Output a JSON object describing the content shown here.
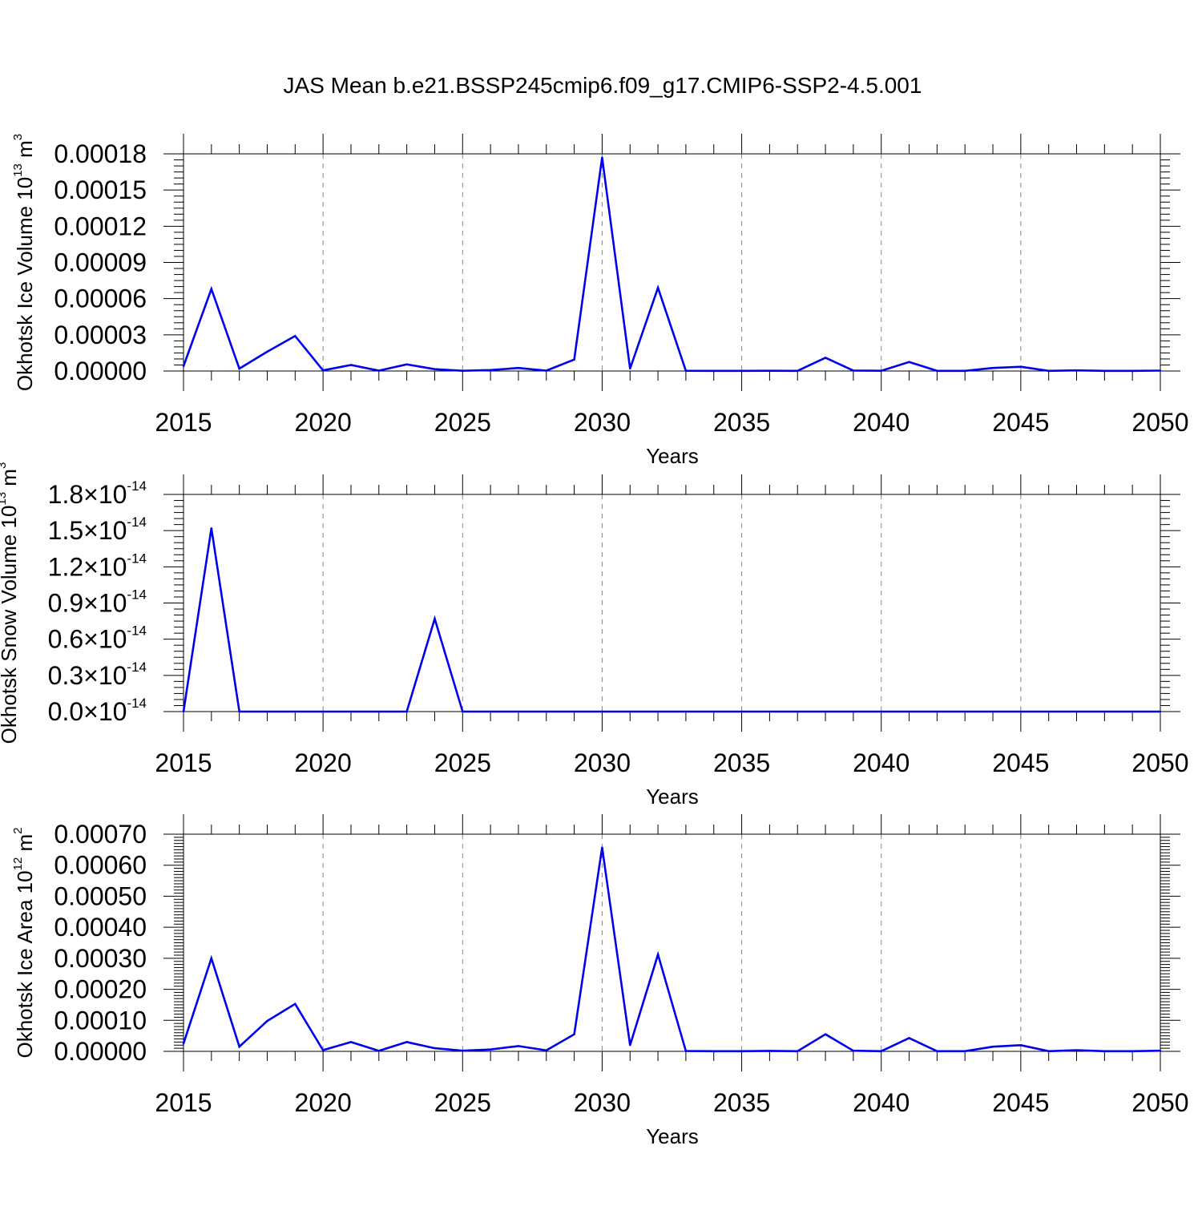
{
  "title": "JAS Mean b.e21.BSSP245cmip6.f09_g17.CMIP6-SSP2-4.5.001",
  "colors": {
    "line": "#0000ee",
    "axis": "#000000",
    "grid": "#888888"
  },
  "chart_data": [
    {
      "type": "line",
      "xlabel": "Years",
      "ylabel": {
        "main": "Okhotsk Ice Volume 10",
        "exp": "13",
        "unit": " m",
        "unit_exp": "3"
      },
      "xlim": [
        2015,
        2050
      ],
      "ylim": [
        0,
        0.00018
      ],
      "xticks": [
        "2015",
        "2020",
        "2025",
        "2030",
        "2035",
        "2040",
        "2045",
        "2050"
      ],
      "yticks": [
        "0.00000",
        "0.00003",
        "0.00006",
        "0.00009",
        "0.00012",
        "0.00015",
        "0.00018"
      ],
      "x": [
        2015,
        2016,
        2017,
        2018,
        2019,
        2020,
        2021,
        2022,
        2023,
        2024,
        2025,
        2026,
        2027,
        2028,
        2029,
        2030,
        2031,
        2032,
        2033,
        2034,
        2035,
        2036,
        2037,
        2038,
        2039,
        2040,
        2041,
        2042,
        2043,
        2044,
        2045,
        2046,
        2047,
        2048,
        2049,
        2050
      ],
      "series": [
        {
          "values": [
            4e-06,
            6.8e-05,
            2e-06,
            1.6e-05,
            2.9e-05,
            5e-07,
            5e-06,
            3e-07,
            5.5e-06,
            1.5e-06,
            2e-07,
            8e-07,
            2.5e-06,
            3e-07,
            9.5e-06,
            0.000177,
            2e-06,
            6.9e-05,
            2e-07,
            1e-07,
            1e-07,
            2e-07,
            1e-07,
            1.1e-05,
            4e-07,
            2e-07,
            7.5e-06,
            1e-07,
            1e-07,
            2.5e-06,
            3.5e-06,
            1e-07,
            5e-07,
            1e-07,
            1e-07,
            3e-07
          ]
        }
      ]
    },
    {
      "type": "line",
      "xlabel": "Years",
      "ylabel": {
        "main": "Okhotsk Snow Volume 10",
        "exp": "13",
        "unit": " m",
        "unit_exp": "3"
      },
      "xlim": [
        2015,
        2050
      ],
      "ylim": [
        0,
        1.8e-14
      ],
      "xticks": [
        "2015",
        "2020",
        "2025",
        "2030",
        "2035",
        "2040",
        "2045",
        "2050"
      ],
      "yticks": [
        {
          "mant": "0.0",
          "exp": "-14"
        },
        {
          "mant": "0.3",
          "exp": "-14"
        },
        {
          "mant": "0.6",
          "exp": "-14"
        },
        {
          "mant": "0.9",
          "exp": "-14"
        },
        {
          "mant": "1.2",
          "exp": "-14"
        },
        {
          "mant": "1.5",
          "exp": "-14"
        },
        {
          "mant": "1.8",
          "exp": "-14"
        }
      ],
      "ytick_times": "×10",
      "x": [
        2015,
        2016,
        2017,
        2018,
        2019,
        2020,
        2021,
        2022,
        2023,
        2024,
        2025,
        2026,
        2027,
        2028,
        2029,
        2030,
        2031,
        2032,
        2033,
        2034,
        2035,
        2036,
        2037,
        2038,
        2039,
        2040,
        2041,
        2042,
        2043,
        2044,
        2045,
        2046,
        2047,
        2048,
        2049,
        2050
      ],
      "series": [
        {
          "values": [
            0,
            1.52e-14,
            0,
            0,
            0,
            0,
            0,
            0,
            0,
            7.7e-15,
            0,
            0,
            0,
            0,
            0,
            0,
            0,
            0,
            0,
            0,
            0,
            0,
            0,
            0,
            0,
            0,
            0,
            0,
            0,
            0,
            0,
            0,
            0,
            0,
            0,
            0
          ]
        }
      ]
    },
    {
      "type": "line",
      "xlabel": "Years",
      "ylabel": {
        "main": "Okhotsk Ice Area 10",
        "exp": "12",
        "unit": " m",
        "unit_exp": "2"
      },
      "xlim": [
        2015,
        2050
      ],
      "ylim": [
        0,
        0.0007
      ],
      "xticks": [
        "2015",
        "2020",
        "2025",
        "2030",
        "2035",
        "2040",
        "2045",
        "2050"
      ],
      "yticks": [
        "0.00000",
        "0.00010",
        "0.00020",
        "0.00030",
        "0.00040",
        "0.00050",
        "0.00060",
        "0.00070"
      ],
      "x": [
        2015,
        2016,
        2017,
        2018,
        2019,
        2020,
        2021,
        2022,
        2023,
        2024,
        2025,
        2026,
        2027,
        2028,
        2029,
        2030,
        2031,
        2032,
        2033,
        2034,
        2035,
        2036,
        2037,
        2038,
        2039,
        2040,
        2041,
        2042,
        2043,
        2044,
        2045,
        2046,
        2047,
        2048,
        2049,
        2050
      ],
      "series": [
        {
          "values": [
            2.5e-05,
            0.0003,
            1.5e-05,
            9.8e-05,
            0.000153,
            4e-06,
            3e-05,
            1.5e-06,
            3e-05,
            1e-05,
            2e-06,
            6e-06,
            1.7e-05,
            3e-06,
            5.5e-05,
            0.000657,
            2e-05,
            0.000312,
            1e-06,
            5e-07,
            5e-07,
            1.5e-06,
            5e-07,
            5.5e-05,
            2e-06,
            5e-07,
            4.3e-05,
            5e-07,
            5e-07,
            1.5e-05,
            2e-05,
            5e-07,
            3.5e-06,
            5e-07,
            5e-07,
            2e-06
          ]
        }
      ]
    }
  ]
}
